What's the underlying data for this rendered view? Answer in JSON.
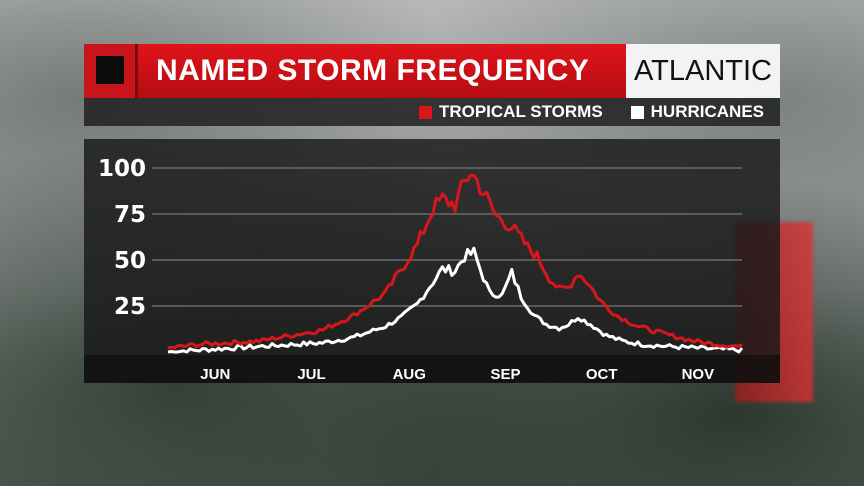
{
  "header": {
    "title": "NAMED STORM FREQUENCY",
    "region": "ATLANTIC"
  },
  "colors": {
    "accent_red": "#d9161c",
    "hurricane_white": "#ffffff",
    "panel": "#191919"
  },
  "chart_data": {
    "type": "line",
    "title": "NAMED STORM FREQUENCY",
    "xlabel": "",
    "ylabel": "",
    "ylim": [
      0,
      100
    ],
    "yticks": [
      25,
      50,
      75,
      100
    ],
    "grid": true,
    "legend_position": "top-right",
    "months": [
      "JUN",
      "JUL",
      "AUG",
      "SEP",
      "OCT",
      "NOV"
    ],
    "x_start": "Jun 1",
    "x_end": "Nov 30",
    "series": [
      {
        "name": "TROPICAL STORMS",
        "color": "#d9161c",
        "anchors": [
          [
            1,
            2
          ],
          [
            10,
            4
          ],
          [
            20,
            5
          ],
          [
            30,
            6
          ],
          [
            40,
            9
          ],
          [
            50,
            12
          ],
          [
            60,
            20
          ],
          [
            65,
            26
          ],
          [
            70,
            32
          ],
          [
            75,
            45
          ],
          [
            80,
            58
          ],
          [
            85,
            78
          ],
          [
            88,
            83
          ],
          [
            92,
            80
          ],
          [
            95,
            92
          ],
          [
            97,
            98
          ],
          [
            100,
            90
          ],
          [
            105,
            74
          ],
          [
            110,
            68
          ],
          [
            115,
            57
          ],
          [
            118,
            52
          ],
          [
            122,
            40
          ],
          [
            125,
            34
          ],
          [
            128,
            35
          ],
          [
            131,
            43
          ],
          [
            134,
            38
          ],
          [
            138,
            28
          ],
          [
            143,
            20
          ],
          [
            150,
            14
          ],
          [
            158,
            10
          ],
          [
            165,
            7
          ],
          [
            171,
            5
          ],
          [
            176,
            4
          ],
          [
            183,
            3
          ]
        ]
      },
      {
        "name": "HURRICANES",
        "color": "#ffffff",
        "anchors": [
          [
            1,
            0
          ],
          [
            10,
            1
          ],
          [
            20,
            2
          ],
          [
            30,
            3
          ],
          [
            40,
            4
          ],
          [
            50,
            5
          ],
          [
            60,
            8
          ],
          [
            65,
            11
          ],
          [
            70,
            14
          ],
          [
            75,
            19
          ],
          [
            80,
            26
          ],
          [
            85,
            38
          ],
          [
            88,
            45
          ],
          [
            92,
            44
          ],
          [
            95,
            52
          ],
          [
            98,
            54
          ],
          [
            100,
            45
          ],
          [
            103,
            32
          ],
          [
            107,
            31
          ],
          [
            110,
            43
          ],
          [
            113,
            30
          ],
          [
            117,
            20
          ],
          [
            121,
            15
          ],
          [
            125,
            13
          ],
          [
            128,
            15
          ],
          [
            131,
            19
          ],
          [
            135,
            15
          ],
          [
            140,
            9
          ],
          [
            145,
            6
          ],
          [
            152,
            4
          ],
          [
            160,
            3
          ],
          [
            170,
            2
          ],
          [
            183,
            1
          ]
        ]
      }
    ]
  }
}
